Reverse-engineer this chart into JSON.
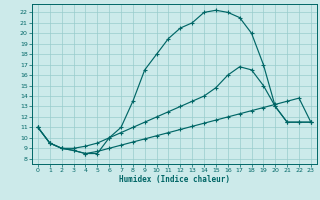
{
  "title": "",
  "xlabel": "Humidex (Indice chaleur)",
  "bg_color": "#cceaea",
  "grid_color": "#99cccc",
  "line_color": "#006666",
  "xlim": [
    -0.5,
    23.5
  ],
  "ylim": [
    7.5,
    22.8
  ],
  "xticks": [
    0,
    1,
    2,
    3,
    4,
    5,
    6,
    7,
    8,
    9,
    10,
    11,
    12,
    13,
    14,
    15,
    16,
    17,
    18,
    19,
    20,
    21,
    22,
    23
  ],
  "yticks": [
    8,
    9,
    10,
    11,
    12,
    13,
    14,
    15,
    16,
    17,
    18,
    19,
    20,
    21,
    22
  ],
  "curve1_x": [
    0,
    1,
    2,
    3,
    4,
    5,
    6,
    7,
    8,
    9,
    10,
    11,
    12,
    13,
    14,
    15,
    16,
    17,
    18,
    19,
    20,
    21,
    22,
    23
  ],
  "curve1_y": [
    11,
    9.5,
    9.0,
    8.8,
    8.5,
    8.5,
    10.0,
    11.0,
    13.5,
    16.5,
    18.0,
    19.5,
    20.5,
    21.0,
    22.0,
    22.2,
    22.0,
    21.5,
    20.0,
    17.0,
    13.0,
    11.5,
    11.5,
    11.5
  ],
  "curve2_x": [
    0,
    1,
    2,
    3,
    4,
    5,
    6,
    7,
    8,
    9,
    10,
    11,
    12,
    13,
    14,
    15,
    16,
    17,
    18,
    19,
    20,
    21,
    22,
    23
  ],
  "curve2_y": [
    11,
    9.5,
    9.0,
    9.0,
    9.2,
    9.5,
    10.0,
    10.5,
    11.0,
    11.5,
    12.0,
    12.5,
    13.0,
    13.5,
    14.0,
    14.8,
    16.0,
    16.8,
    16.5,
    15.0,
    13.0,
    11.5,
    11.5,
    11.5
  ],
  "curve3_x": [
    0,
    1,
    2,
    3,
    4,
    5,
    6,
    7,
    8,
    9,
    10,
    11,
    12,
    13,
    14,
    15,
    16,
    17,
    18,
    19,
    20,
    21,
    22,
    23
  ],
  "curve3_y": [
    11,
    9.5,
    9.0,
    8.8,
    8.5,
    8.7,
    9.0,
    9.3,
    9.6,
    9.9,
    10.2,
    10.5,
    10.8,
    11.1,
    11.4,
    11.7,
    12.0,
    12.3,
    12.6,
    12.9,
    13.2,
    13.5,
    13.8,
    11.5
  ]
}
